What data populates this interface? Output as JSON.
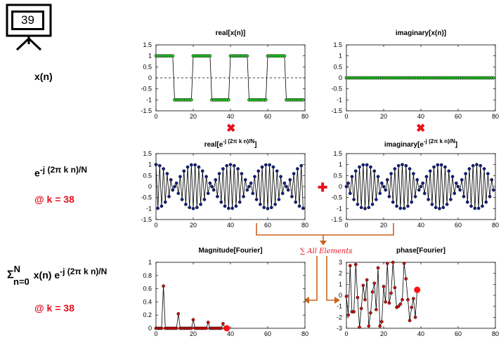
{
  "slide_number": "39",
  "labels": {
    "xn": "x(n)",
    "exp_base": "e",
    "exp_sup": "-j (2π k n)/N",
    "at_k_1": "@ k = 38",
    "sigma": "Σ",
    "sigma_sup": "N",
    "sigma_sub": "n=0",
    "sum_body": "x(n) e",
    "sum_sup": "-j (2π k n)/N",
    "at_k_2": "@ k = 38",
    "sum_all": "∑ All Elements",
    "multiply_1": "✖",
    "multiply_2": "✖",
    "plus": "✚"
  },
  "colors": {
    "green": "#28c828",
    "navy": "#10208a",
    "red_marker": "#d01010",
    "accent_red": "#e8101c",
    "arrow": "#c8641e"
  },
  "chart_data": [
    {
      "id": "real_x",
      "type": "line",
      "title": "real[x(n)]",
      "xlim": [
        0,
        80
      ],
      "ylim": [
        -1.5,
        1.5
      ],
      "xticks": [
        0,
        20,
        40,
        60,
        80
      ],
      "yticks": [
        1.5,
        1,
        0.5,
        0,
        -0.5,
        -1,
        -1.5
      ],
      "zero_line": "dashed",
      "marker_color": "green",
      "series": [
        {
          "x": [
            0,
            1,
            2,
            3,
            4,
            5,
            6,
            7,
            8,
            9,
            10,
            11,
            12,
            13,
            14,
            15,
            16,
            17,
            18,
            19,
            20,
            21,
            22,
            23,
            24,
            25,
            26,
            27,
            28,
            29,
            30,
            31,
            32,
            33,
            34,
            35,
            36,
            37,
            38,
            39,
            40,
            41,
            42,
            43,
            44,
            45,
            46,
            47,
            48,
            49,
            50,
            51,
            52,
            53,
            54,
            55,
            56,
            57,
            58,
            59,
            60,
            61,
            62,
            63,
            64,
            65,
            66,
            67,
            68,
            69,
            70,
            71,
            72,
            73,
            74,
            75,
            76,
            77,
            78,
            79
          ],
          "y": [
            1,
            1,
            1,
            1,
            1,
            1,
            1,
            1,
            1,
            1,
            -1,
            -1,
            -1,
            -1,
            -1,
            -1,
            -1,
            -1,
            -1,
            -1,
            1,
            1,
            1,
            1,
            1,
            1,
            1,
            1,
            1,
            1,
            -1,
            -1,
            -1,
            -1,
            -1,
            -1,
            -1,
            -1,
            -1,
            -1,
            1,
            1,
            1,
            1,
            1,
            1,
            1,
            1,
            1,
            1,
            -1,
            -1,
            -1,
            -1,
            -1,
            -1,
            -1,
            -1,
            -1,
            -1,
            1,
            1,
            1,
            1,
            1,
            1,
            1,
            1,
            1,
            1,
            -1,
            -1,
            -1,
            -1,
            -1,
            -1,
            -1,
            -1,
            -1,
            -1
          ]
        }
      ]
    },
    {
      "id": "imag_x",
      "type": "line",
      "title": "imaginary[x(n)]",
      "xlim": [
        0,
        80
      ],
      "ylim": [
        -1.5,
        1.5
      ],
      "xticks": [
        0,
        20,
        40,
        60,
        80
      ],
      "yticks": [
        1.5,
        1,
        0.5,
        0,
        -0.5,
        -1,
        -1.5
      ],
      "zero_line": "dashed",
      "marker_color": "green",
      "series": [
        {
          "x": [
            0,
            1,
            2,
            3,
            4,
            5,
            6,
            7,
            8,
            9,
            10,
            11,
            12,
            13,
            14,
            15,
            16,
            17,
            18,
            19,
            20,
            21,
            22,
            23,
            24,
            25,
            26,
            27,
            28,
            29,
            30,
            31,
            32,
            33,
            34,
            35,
            36,
            37,
            38,
            39,
            40,
            41,
            42,
            43,
            44,
            45,
            46,
            47,
            48,
            49,
            50,
            51,
            52,
            53,
            54,
            55,
            56,
            57,
            58,
            59,
            60,
            61,
            62,
            63,
            64,
            65,
            66,
            67,
            68,
            69,
            70,
            71,
            72,
            73,
            74,
            75,
            76,
            77,
            78,
            79
          ],
          "y": [
            0,
            0,
            0,
            0,
            0,
            0,
            0,
            0,
            0,
            0,
            0,
            0,
            0,
            0,
            0,
            0,
            0,
            0,
            0,
            0,
            0,
            0,
            0,
            0,
            0,
            0,
            0,
            0,
            0,
            0,
            0,
            0,
            0,
            0,
            0,
            0,
            0,
            0,
            0,
            0,
            0,
            0,
            0,
            0,
            0,
            0,
            0,
            0,
            0,
            0,
            0,
            0,
            0,
            0,
            0,
            0,
            0,
            0,
            0,
            0,
            0,
            0,
            0,
            0,
            0,
            0,
            0,
            0,
            0,
            0,
            0,
            0,
            0,
            0,
            0,
            0,
            0,
            0,
            0,
            0
          ]
        }
      ]
    },
    {
      "id": "real_e",
      "type": "line",
      "title": "real[e",
      "title_sup": "-j (2π k n)/N",
      "title_end": "]",
      "xlim": [
        0,
        80
      ],
      "ylim": [
        -1.5,
        1.5
      ],
      "xticks": [
        0,
        20,
        40,
        60,
        80
      ],
      "yticks": [
        1.5,
        1,
        0.5,
        0,
        -0.5,
        -1,
        -1.5
      ],
      "marker_color": "navy",
      "series": [
        {
          "x": [
            0,
            1,
            2,
            3,
            4,
            5,
            6,
            7,
            8,
            9,
            10,
            11,
            12,
            13,
            14,
            15,
            16,
            17,
            18,
            19,
            20,
            21,
            22,
            23,
            24,
            25,
            26,
            27,
            28,
            29,
            30,
            31,
            32,
            33,
            34,
            35,
            36,
            37,
            38,
            39,
            40,
            41,
            42,
            43,
            44,
            45,
            46,
            47,
            48,
            49,
            50,
            51,
            52,
            53,
            54,
            55,
            56,
            57,
            58,
            59,
            60,
            61,
            62,
            63,
            64,
            65,
            66,
            67,
            68,
            69,
            70,
            71,
            72,
            73,
            74,
            75,
            76,
            77,
            78,
            79
          ],
          "y": [
            1,
            -0.988,
            0.951,
            -0.891,
            0.809,
            -0.707,
            0.588,
            -0.454,
            0.309,
            -0.156,
            0,
            0.156,
            -0.309,
            0.454,
            -0.588,
            0.707,
            -0.809,
            0.891,
            -0.951,
            0.988,
            -1,
            0.988,
            -0.951,
            0.891,
            -0.809,
            0.707,
            -0.588,
            0.454,
            -0.309,
            0.156,
            0,
            -0.156,
            0.309,
            -0.454,
            0.588,
            -0.707,
            0.809,
            -0.891,
            0.951,
            -0.988,
            1,
            -0.988,
            0.951,
            -0.891,
            0.809,
            -0.707,
            0.588,
            -0.454,
            0.309,
            -0.156,
            0,
            0.156,
            -0.309,
            0.454,
            -0.588,
            0.707,
            -0.809,
            0.891,
            -0.951,
            0.988,
            -1,
            0.988,
            -0.951,
            0.891,
            -0.809,
            0.707,
            -0.588,
            0.454,
            -0.309,
            0.156,
            0,
            -0.156,
            0.309,
            -0.454,
            0.588,
            -0.707,
            0.809,
            -0.891,
            0.951,
            -0.988
          ]
        }
      ]
    },
    {
      "id": "imag_e",
      "type": "line",
      "title": "imaginary[e",
      "title_sup": "-j (2π k n)/N",
      "title_end": "]",
      "xlim": [
        0,
        80
      ],
      "ylim": [
        -1.5,
        1.5
      ],
      "xticks": [
        0,
        20,
        40,
        60,
        80
      ],
      "yticks": [
        1.5,
        1,
        0.5,
        0,
        -0.5,
        -1,
        -1.5
      ],
      "marker_color": "navy",
      "series": [
        {
          "x": [
            0,
            1,
            2,
            3,
            4,
            5,
            6,
            7,
            8,
            9,
            10,
            11,
            12,
            13,
            14,
            15,
            16,
            17,
            18,
            19,
            20,
            21,
            22,
            23,
            24,
            25,
            26,
            27,
            28,
            29,
            30,
            31,
            32,
            33,
            34,
            35,
            36,
            37,
            38,
            39,
            40,
            41,
            42,
            43,
            44,
            45,
            46,
            47,
            48,
            49,
            50,
            51,
            52,
            53,
            54,
            55,
            56,
            57,
            58,
            59,
            60,
            61,
            62,
            63,
            64,
            65,
            66,
            67,
            68,
            69,
            70,
            71,
            72,
            73,
            74,
            75,
            76,
            77,
            78,
            79
          ],
          "y": [
            0,
            0.156,
            -0.309,
            0.454,
            -0.588,
            0.707,
            -0.809,
            0.891,
            -0.951,
            0.988,
            -1,
            0.988,
            -0.951,
            0.891,
            -0.809,
            0.707,
            -0.588,
            0.454,
            -0.309,
            0.156,
            0,
            -0.156,
            0.309,
            -0.454,
            0.588,
            -0.707,
            0.809,
            -0.891,
            0.951,
            -0.988,
            1,
            -0.988,
            0.951,
            -0.891,
            0.809,
            -0.707,
            0.588,
            -0.454,
            0.309,
            -0.156,
            0,
            0.156,
            -0.309,
            0.454,
            -0.588,
            0.707,
            -0.809,
            0.891,
            -0.951,
            0.988,
            -1,
            0.988,
            -0.951,
            0.891,
            -0.809,
            0.707,
            -0.588,
            0.454,
            -0.309,
            0.156,
            0,
            -0.156,
            0.309,
            -0.454,
            0.588,
            -0.707,
            0.809,
            -0.891,
            0.951,
            -0.988,
            1,
            -0.988,
            0.951,
            -0.891,
            0.809,
            -0.707,
            0.588,
            -0.454,
            0.309,
            -0.156
          ]
        }
      ]
    },
    {
      "id": "magnitude",
      "type": "line",
      "title": "Magnitude[Fourier]",
      "xlim": [
        0,
        80
      ],
      "ylim": [
        0,
        1
      ],
      "xticks": [
        0,
        20,
        40,
        60,
        80
      ],
      "yticks": [
        1,
        0.8,
        0.6,
        0.4,
        0.2,
        0
      ],
      "marker_color": "red_marker",
      "series": [
        {
          "x": [
            0,
            1,
            2,
            3,
            4,
            5,
            6,
            7,
            8,
            9,
            10,
            11,
            12,
            13,
            14,
            15,
            16,
            17,
            18,
            19,
            20,
            21,
            22,
            23,
            24,
            25,
            26,
            27,
            28,
            29,
            30,
            31,
            32,
            33,
            34,
            35,
            36,
            37,
            38
          ],
          "y": [
            0,
            0,
            0,
            0,
            0.64,
            0,
            0,
            0,
            0,
            0,
            0,
            0,
            0.22,
            0,
            0,
            0,
            0,
            0,
            0,
            0,
            0.13,
            0,
            0,
            0,
            0,
            0,
            0,
            0,
            0.09,
            0,
            0,
            0,
            0,
            0,
            0,
            0,
            0.07,
            0,
            0
          ]
        }
      ],
      "highlight": {
        "x": 38,
        "y": 0
      }
    },
    {
      "id": "phase",
      "type": "line",
      "title": "phase[Fourier]",
      "xlim": [
        0,
        80
      ],
      "ylim": [
        -3,
        3
      ],
      "xticks": [
        0,
        20,
        40,
        60,
        80
      ],
      "yticks": [
        3,
        2,
        1,
        0,
        -1,
        -2,
        -3
      ],
      "marker_color": "red_marker",
      "series": [
        {
          "x": [
            0,
            1,
            2,
            3,
            4,
            5,
            6,
            7,
            8,
            9,
            10,
            11,
            12,
            13,
            14,
            15,
            16,
            17,
            18,
            19,
            20,
            21,
            22,
            23,
            24,
            25,
            26,
            27,
            28,
            29,
            30,
            31,
            32,
            33,
            34,
            35,
            36,
            37,
            38
          ],
          "y": [
            -0.1,
            -1.8,
            2.7,
            -1.5,
            -1.5,
            2.8,
            -0.2,
            -2.9,
            -1.2,
            0.9,
            -0.4,
            1.4,
            -2.8,
            -1.6,
            0.3,
            1.1,
            -1.3,
            2.5,
            -2.8,
            -2.4,
            0.8,
            -0.6,
            2.9,
            -0.7,
            0.2,
            3.0,
            0.7,
            -1.1,
            -1.0,
            -0.8,
            -0.4,
            2.9,
            1.5,
            -0.4,
            -2.3,
            -1.1,
            -0.3,
            -2.0,
            0.5
          ]
        }
      ],
      "highlight": {
        "x": 38,
        "y": 0.5
      }
    }
  ]
}
